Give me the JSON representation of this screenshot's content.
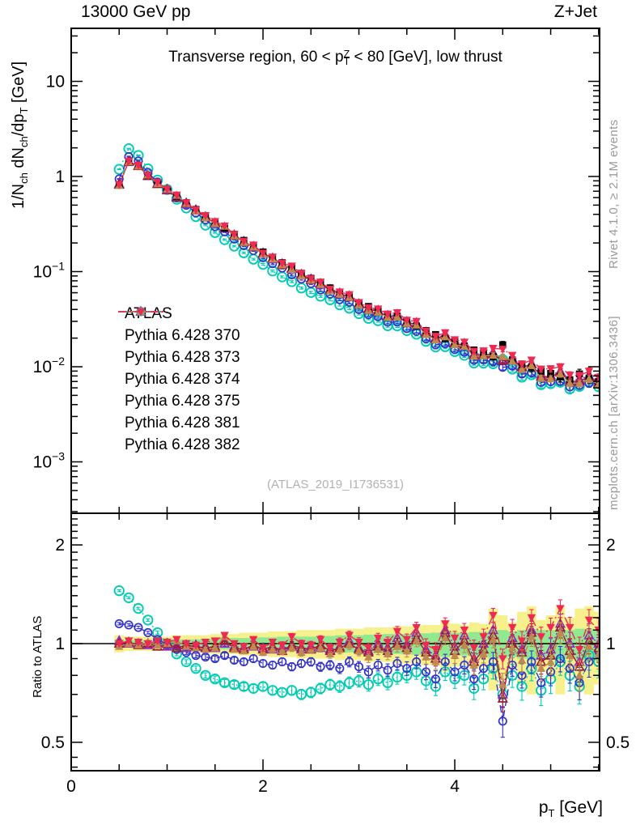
{
  "header": {
    "left": "13000 GeV pp",
    "right": "Z+Jet"
  },
  "subtitle": {
    "segments": [
      {
        "t": "Transverse region, 60 < p"
      },
      {
        "stack": {
          "sup": "Z",
          "sub": "T"
        }
      },
      {
        "t": " < 80 [GeV], low thrust"
      }
    ]
  },
  "watermark": "(ATLAS_2019_I1736531)",
  "side_notes": {
    "top": "Rivet 4.1.0, ≥ 2.1M events",
    "bottom": "mcplots.cern.ch [arXiv:1306.3436]"
  },
  "axes": {
    "main_y_label_segments": [
      {
        "t": "1/N"
      },
      {
        "sub": "ch"
      },
      {
        "t": " dN"
      },
      {
        "sub": "ch"
      },
      {
        "t": "/dp"
      },
      {
        "sub": "T"
      },
      {
        "t": " [GeV]"
      }
    ],
    "ratio_y_label": "Ratio to ATLAS",
    "x_label_segments": [
      {
        "t": "p"
      },
      {
        "sub": "T"
      },
      {
        "t": " [GeV]"
      }
    ],
    "x_ticks": [
      {
        "v": 0,
        "label": "0"
      },
      {
        "v": 2,
        "label": "2"
      },
      {
        "v": 4,
        "label": "4"
      }
    ],
    "x_minor_step": 0.5,
    "main_y_ticks": [
      {
        "v": 10,
        "mant": "10",
        "exp": ""
      },
      {
        "v": 1,
        "mant": "1",
        "exp": ""
      },
      {
        "v": 0.1,
        "mant": "10",
        "exp": "−1"
      },
      {
        "v": 0.01,
        "mant": "10",
        "exp": "−2"
      },
      {
        "v": 0.001,
        "mant": "10",
        "exp": "−3"
      }
    ],
    "ratio_y_ticks": [
      {
        "v": 2,
        "label": "2"
      },
      {
        "v": 1,
        "label": "1"
      },
      {
        "v": 0.5,
        "label": "0.5"
      }
    ],
    "x_range": [
      0,
      5.51
    ],
    "main_y_range": [
      0.00029,
      36
    ],
    "ratio_y_range": [
      0.41,
      2.49
    ]
  },
  "legend": {
    "items": [
      {
        "label": "ATLAS",
        "marker": "square-filled",
        "color": "#000000",
        "line": "none"
      },
      {
        "label": "Pythia 6.428 370",
        "marker": "triangle-open",
        "color": "#9e1b32",
        "line": "solid"
      },
      {
        "label": "Pythia 6.428 373",
        "marker": "triangle-open",
        "color": "#8f2bbf",
        "line": "dotted"
      },
      {
        "label": "Pythia 6.428 374",
        "marker": "circle-open",
        "color": "#3333cc",
        "line": "dashed"
      },
      {
        "label": "Pythia 6.428 375",
        "marker": "circle-open",
        "color": "#00ccb2",
        "line": "dotted"
      },
      {
        "label": "Pythia 6.428 381",
        "marker": "triangle-filled",
        "color": "#bf8950",
        "line": "dashed"
      },
      {
        "label": "Pythia 6.428 382",
        "marker": "triangle-down-filled",
        "color": "#ee2a52",
        "line": "dashdot"
      }
    ]
  },
  "chart_data": {
    "type": "line",
    "title": "Transverse region, 60 < pT(Z) < 80 [GeV], low thrust",
    "xlabel": "pT [GeV]",
    "ylabel": "1/Nch dNch/dpT [GeV]",
    "x_axis_log": false,
    "main_y_log": true,
    "ratio_y_log": true,
    "legend_position": "inside-left",
    "x": [
      0.5,
      0.6,
      0.7,
      0.8,
      0.9,
      1.0,
      1.1,
      1.2,
      1.3,
      1.4,
      1.5,
      1.6,
      1.7,
      1.8,
      1.9,
      2.0,
      2.1,
      2.2,
      2.3,
      2.4,
      2.5,
      2.6,
      2.7,
      2.8,
      2.9,
      3.0,
      3.1,
      3.2,
      3.3,
      3.4,
      3.5,
      3.6,
      3.7,
      3.8,
      3.9,
      4.0,
      4.1,
      4.2,
      4.3,
      4.4,
      4.5,
      4.6,
      4.7,
      4.8,
      4.9,
      5.0,
      5.1,
      5.2,
      5.3,
      5.4,
      5.5
    ],
    "atlas_values": [
      0.82,
      1.42,
      1.3,
      1.02,
      0.85,
      0.73,
      0.62,
      0.53,
      0.45,
      0.385,
      0.33,
      0.285,
      0.247,
      0.213,
      0.185,
      0.161,
      0.141,
      0.124,
      0.109,
      0.096,
      0.085,
      0.0755,
      0.0675,
      0.0605,
      0.0542,
      0.047,
      0.043,
      0.039,
      0.0355,
      0.034,
      0.03,
      0.0268,
      0.024,
      0.0218,
      0.0198,
      0.0185,
      0.0165,
      0.015,
      0.014,
      0.0128,
      0.017,
      0.0118,
      0.0105,
      0.0098,
      0.009,
      0.0085,
      0.0078,
      0.0073,
      0.0084,
      0.0076,
      0.007
    ],
    "series": [
      {
        "name": "Pythia 6.428 370",
        "color": "#9e1b32",
        "line": "solid",
        "marker": "triangle-open",
        "ratio": [
          1.0,
          1.01,
          0.99,
          1.0,
          0.98,
          1.0,
          0.97,
          0.99,
          0.98,
          0.97,
          0.98,
          1.02,
          0.97,
          0.96,
          0.99,
          0.96,
          0.98,
          0.95,
          0.99,
          0.97,
          0.96,
          0.99,
          0.95,
          0.97,
          1.0,
          0.96,
          0.94,
          0.98,
          0.95,
          1.0,
          0.97,
          1.04,
          0.94,
          0.9,
          1.08,
          0.95,
          1.02,
          0.88,
          0.96,
          1.06,
          0.68,
          1.0,
          0.94,
          1.08,
          0.88,
          0.92,
          1.12,
          0.95,
          0.85,
          1.02,
          0.97
        ]
      },
      {
        "name": "Pythia 6.428 373",
        "color": "#8f2bbf",
        "line": "dotted",
        "marker": "triangle-open",
        "ratio": [
          1.02,
          1.0,
          1.0,
          0.99,
          1.0,
          0.98,
          0.99,
          0.97,
          0.99,
          0.98,
          0.97,
          1.0,
          0.98,
          0.97,
          0.98,
          0.97,
          0.96,
          0.97,
          0.98,
          0.96,
          0.98,
          0.97,
          0.96,
          0.98,
          1.02,
          0.97,
          0.95,
          1.0,
          0.97,
          1.04,
          0.99,
          1.08,
          0.96,
          0.92,
          1.1,
          0.98,
          1.06,
          0.9,
          1.0,
          1.1,
          0.7,
          1.04,
          0.96,
          1.1,
          0.92,
          0.96,
          1.15,
          1.0,
          0.88,
          1.06,
          1.0
        ]
      },
      {
        "name": "Pythia 6.428 374",
        "color": "#3333cc",
        "line": "dashed",
        "marker": "circle-open",
        "ratio": [
          1.15,
          1.14,
          1.12,
          1.08,
          1.03,
          0.99,
          0.96,
          0.94,
          0.92,
          0.91,
          0.9,
          0.92,
          0.89,
          0.88,
          0.9,
          0.87,
          0.86,
          0.88,
          0.85,
          0.87,
          0.88,
          0.85,
          0.86,
          0.84,
          0.88,
          0.85,
          0.82,
          0.86,
          0.83,
          0.87,
          0.84,
          0.88,
          0.82,
          0.78,
          0.88,
          0.82,
          0.86,
          0.78,
          0.84,
          0.88,
          0.58,
          0.86,
          0.8,
          0.88,
          0.76,
          0.82,
          0.9,
          0.84,
          0.76,
          0.88,
          0.95
        ]
      },
      {
        "name": "Pythia 6.428 375",
        "color": "#00ccb2",
        "line": "dotted",
        "marker": "circle-open-big",
        "ratio": [
          1.45,
          1.38,
          1.28,
          1.18,
          1.08,
          1.0,
          0.93,
          0.88,
          0.84,
          0.8,
          0.78,
          0.76,
          0.75,
          0.74,
          0.73,
          0.74,
          0.72,
          0.71,
          0.72,
          0.7,
          0.71,
          0.73,
          0.75,
          0.74,
          0.76,
          0.77,
          0.75,
          0.78,
          0.76,
          0.79,
          0.8,
          0.82,
          0.77,
          0.74,
          0.82,
          0.78,
          0.8,
          0.73,
          0.78,
          0.84,
          0.7,
          0.8,
          0.74,
          0.84,
          0.72,
          0.78,
          0.88,
          0.8,
          0.74,
          0.92,
          0.88
        ]
      },
      {
        "name": "Pythia 6.428 381",
        "color": "#bf8950",
        "line": "dashed",
        "marker": "triangle-filled",
        "ratio": [
          0.98,
          1.0,
          0.99,
          1.01,
          0.99,
          1.0,
          1.02,
          0.98,
          0.97,
          0.96,
          0.97,
          1.05,
          0.96,
          0.95,
          0.98,
          0.94,
          0.96,
          0.95,
          0.97,
          0.94,
          0.96,
          0.97,
          0.93,
          0.96,
          0.99,
          0.95,
          0.91,
          0.96,
          0.93,
          0.98,
          0.95,
          1.02,
          0.91,
          0.88,
          1.04,
          0.92,
          0.99,
          0.86,
          0.93,
          1.03,
          0.75,
          0.97,
          0.89,
          1.05,
          0.84,
          0.88,
          1.08,
          0.92,
          0.8,
          0.98,
          0.93
        ]
      },
      {
        "name": "Pythia 6.428 382",
        "color": "#ee2a52",
        "line": "dashdot",
        "marker": "triangle-down-filled",
        "ratio": [
          1.0,
          1.02,
          1.01,
          1.0,
          1.02,
          1.01,
          1.03,
          1.0,
          0.99,
          1.01,
          1.02,
          1.06,
          1.0,
          0.98,
          1.03,
          0.97,
          1.01,
          0.99,
          1.05,
          1.0,
          0.99,
          1.03,
          0.97,
          1.01,
          1.06,
          1.01,
          0.97,
          1.04,
          1.01,
          1.09,
          1.03,
          1.12,
          0.99,
          0.96,
          1.15,
          1.04,
          1.1,
          0.97,
          1.05,
          1.22,
          0.9,
          1.12,
          1.02,
          1.2,
          1.05,
          1.12,
          1.28,
          1.12,
          0.96,
          1.18,
          1.1
        ]
      }
    ],
    "atlas_band_outer": [
      0.06,
      0.05,
      0.05,
      0.05,
      0.05,
      0.05,
      0.06,
      0.06,
      0.06,
      0.06,
      0.07,
      0.07,
      0.07,
      0.08,
      0.08,
      0.08,
      0.09,
      0.09,
      0.09,
      0.1,
      0.1,
      0.1,
      0.1,
      0.11,
      0.11,
      0.11,
      0.12,
      0.12,
      0.12,
      0.13,
      0.13,
      0.13,
      0.14,
      0.14,
      0.18,
      0.15,
      0.14,
      0.16,
      0.15,
      0.28,
      0.22,
      0.16,
      0.25,
      0.3,
      0.18,
      0.22,
      0.3,
      0.2,
      0.28,
      0.3,
      0.25
    ],
    "atlas_band_inner": [
      0.03,
      0.025,
      0.025,
      0.025,
      0.025,
      0.03,
      0.03,
      0.03,
      0.03,
      0.035,
      0.035,
      0.04,
      0.04,
      0.04,
      0.045,
      0.045,
      0.045,
      0.05,
      0.05,
      0.05,
      0.05,
      0.055,
      0.055,
      0.06,
      0.06,
      0.06,
      0.065,
      0.065,
      0.07,
      0.07,
      0.07,
      0.075,
      0.075,
      0.08,
      0.09,
      0.08,
      0.08,
      0.085,
      0.085,
      0.1,
      0.1,
      0.09,
      0.1,
      0.11,
      0.1,
      0.1,
      0.11,
      0.1,
      0.11,
      0.11,
      0.1
    ],
    "ratio_err": [
      0.01,
      0.01,
      0.01,
      0.01,
      0.011,
      0.012,
      0.012,
      0.013,
      0.014,
      0.015,
      0.016,
      0.017,
      0.018,
      0.019,
      0.02,
      0.021,
      0.022,
      0.023,
      0.024,
      0.025,
      0.026,
      0.027,
      0.028,
      0.03,
      0.031,
      0.032,
      0.034,
      0.035,
      0.037,
      0.038,
      0.04,
      0.042,
      0.044,
      0.046,
      0.048,
      0.05,
      0.052,
      0.055,
      0.057,
      0.06,
      0.062,
      0.065,
      0.068,
      0.07,
      0.073,
      0.076,
      0.08,
      0.083,
      0.086,
      0.09,
      0.094
    ],
    "band_colors": {
      "outer": "#f6f18c",
      "inner": "#90e890"
    },
    "reference_line": 1.0
  }
}
